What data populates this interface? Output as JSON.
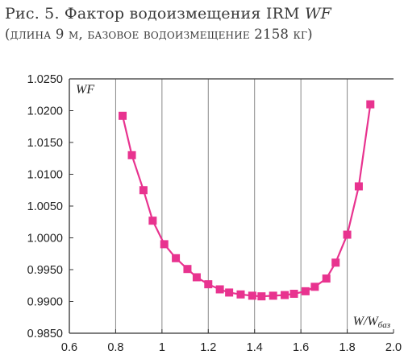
{
  "caption": {
    "line1_prefix": "Рис. 5. Фактор водоизмещения IRM ",
    "line1_italic": "WF",
    "line2": "(длина 9 м, базовое водоизмещение 2158 кг)"
  },
  "chart_data": {
    "type": "line",
    "markers": "square",
    "title": "",
    "ylabel": "WF",
    "xlabel_main": "W/W",
    "xlabel_sub": "баз",
    "xlim": [
      0.6,
      2.0
    ],
    "ylim": [
      0.985,
      1.025
    ],
    "x_ticks": [
      "0.6",
      "0.8",
      "1",
      "1.2",
      "1.4",
      "1.6",
      "1.8",
      "2.0"
    ],
    "x_tick_values": [
      0.6,
      0.8,
      1.0,
      1.2,
      1.4,
      1.6,
      1.8,
      2.0
    ],
    "y_ticks": [
      "0.9850",
      "0.9900",
      "0.9950",
      "1.0000",
      "1.0050",
      "1.0100",
      "1.0150",
      "1.0200",
      "1.0250"
    ],
    "y_tick_values": [
      0.985,
      0.99,
      0.995,
      1.0,
      1.005,
      1.01,
      1.015,
      1.02,
      1.025
    ],
    "grid": "vertical",
    "colors": {
      "series": "#e8338f",
      "axis": "#333333",
      "grid": "#888888"
    },
    "series": [
      {
        "x": [
          0.83,
          0.87,
          0.92,
          0.96,
          1.01,
          1.06,
          1.11,
          1.15,
          1.2,
          1.25,
          1.29,
          1.34,
          1.39,
          1.43,
          1.48,
          1.53,
          1.57,
          1.62,
          1.66,
          1.71,
          1.75,
          1.8,
          1.85,
          1.9
        ],
        "y": [
          1.0192,
          1.013,
          1.0075,
          1.0027,
          0.999,
          0.9968,
          0.9951,
          0.9938,
          0.9927,
          0.9919,
          0.9914,
          0.9911,
          0.9909,
          0.9908,
          0.9909,
          0.991,
          0.9912,
          0.9916,
          0.9923,
          0.9936,
          0.9961,
          1.0005,
          1.0081,
          1.021
        ]
      }
    ]
  }
}
